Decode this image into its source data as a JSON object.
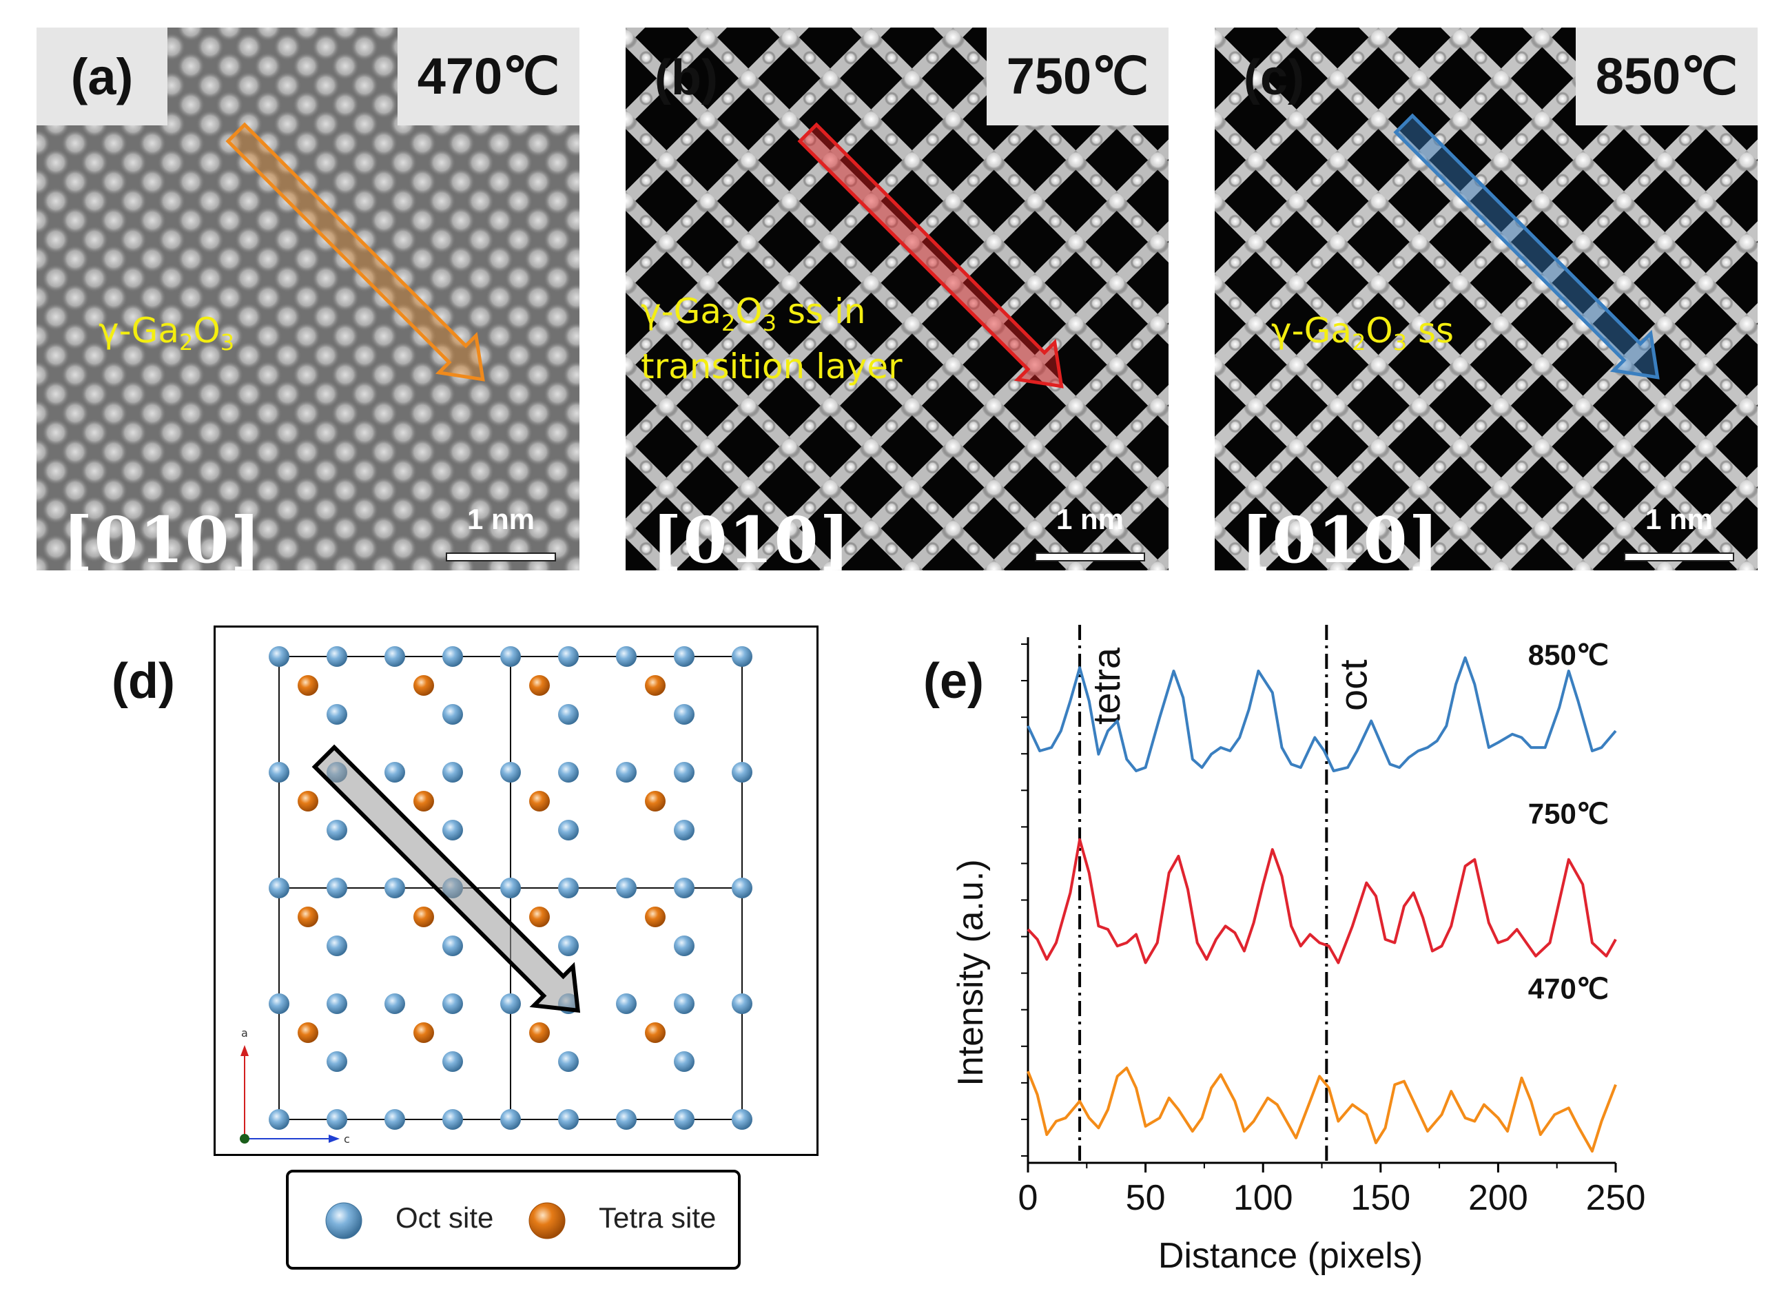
{
  "panels": [
    {
      "label": "(a)",
      "temperature": "470℃",
      "phase": [
        "γ-Ga",
        "2",
        "O",
        "3"
      ],
      "phase_line2": "",
      "zone_axis": "[010]",
      "scale": "1 nm",
      "arrow_color": "#f08a1c",
      "theme": "gray"
    },
    {
      "label": "(b)",
      "temperature": "750℃",
      "phase": [
        "γ-Ga",
        "2",
        "O",
        "3",
        " ss in"
      ],
      "phase_line2": "transition layer",
      "zone_axis": "[010]",
      "scale": "1 nm",
      "arrow_color": "#e02020",
      "theme": "dark"
    },
    {
      "label": "(c)",
      "temperature": "850℃",
      "phase": [
        "γ-Ga",
        "2",
        "O",
        "3",
        " ss"
      ],
      "phase_line2": "",
      "zone_axis": "[010]",
      "scale": "1 nm",
      "arrow_color": "#3a7fc0",
      "theme": "dark"
    }
  ],
  "structure": {
    "label": "(d)",
    "axis_a": "a",
    "axis_c": "c",
    "legend": {
      "oct": "Oct site",
      "tetra": "Tetra site"
    },
    "colors": {
      "oct": "#6fa8d6",
      "tetra": "#e07814"
    }
  },
  "chart_data": {
    "label": "(e)",
    "type": "line",
    "xlabel": "Distance (pixels)",
    "ylabel": "Intensity (a.u.)",
    "xlim": [
      0,
      250
    ],
    "xticks": [
      0,
      50,
      100,
      150,
      200,
      250
    ],
    "y_tick_labels_shown": false,
    "grid": false,
    "annotations": [
      {
        "text": "tetra",
        "x": 22
      },
      {
        "text": "oct",
        "x": 127
      }
    ],
    "series": [
      {
        "name": "850℃",
        "color": "#3a7fc0",
        "x": [
          0,
          5,
          10,
          14,
          18,
          22,
          26,
          30,
          34,
          38,
          42,
          46,
          50,
          56,
          62,
          66,
          70,
          74,
          78,
          82,
          86,
          90,
          94,
          98,
          104,
          108,
          112,
          116,
          122,
          126,
          130,
          136,
          140,
          146,
          150,
          154,
          158,
          162,
          166,
          170,
          174,
          178,
          182,
          186,
          190,
          196,
          200,
          206,
          210,
          214,
          220,
          226,
          230,
          234,
          240,
          244,
          250
        ],
        "y": [
          0.55,
          0.4,
          0.42,
          0.52,
          0.7,
          0.9,
          0.7,
          0.38,
          0.52,
          0.58,
          0.35,
          0.28,
          0.3,
          0.6,
          0.88,
          0.72,
          0.35,
          0.3,
          0.38,
          0.42,
          0.4,
          0.48,
          0.65,
          0.88,
          0.75,
          0.42,
          0.32,
          0.3,
          0.48,
          0.4,
          0.28,
          0.3,
          0.4,
          0.58,
          0.45,
          0.32,
          0.3,
          0.36,
          0.4,
          0.42,
          0.46,
          0.55,
          0.8,
          0.96,
          0.8,
          0.42,
          0.45,
          0.5,
          0.48,
          0.42,
          0.42,
          0.66,
          0.88,
          0.7,
          0.4,
          0.42,
          0.52
        ]
      },
      {
        "name": "750℃",
        "color": "#e0242f",
        "x": [
          0,
          4,
          8,
          12,
          18,
          22,
          26,
          30,
          34,
          38,
          42,
          46,
          50,
          55,
          60,
          64,
          68,
          72,
          76,
          80,
          84,
          88,
          92,
          96,
          100,
          104,
          108,
          112,
          116,
          120,
          124,
          128,
          132,
          138,
          144,
          148,
          152,
          156,
          160,
          164,
          168,
          172,
          176,
          180,
          186,
          190,
          196,
          200,
          204,
          208,
          212,
          216,
          222,
          230,
          236,
          240,
          246,
          250
        ],
        "y": [
          0.38,
          0.32,
          0.2,
          0.3,
          0.6,
          0.92,
          0.72,
          0.4,
          0.38,
          0.28,
          0.3,
          0.35,
          0.18,
          0.3,
          0.72,
          0.82,
          0.62,
          0.3,
          0.2,
          0.32,
          0.4,
          0.36,
          0.25,
          0.42,
          0.65,
          0.86,
          0.7,
          0.4,
          0.28,
          0.35,
          0.3,
          0.28,
          0.18,
          0.4,
          0.66,
          0.58,
          0.32,
          0.3,
          0.52,
          0.6,
          0.45,
          0.25,
          0.28,
          0.4,
          0.76,
          0.8,
          0.42,
          0.3,
          0.32,
          0.38,
          0.3,
          0.22,
          0.3,
          0.8,
          0.65,
          0.3,
          0.22,
          0.32
        ]
      },
      {
        "name": "470℃",
        "color": "#f48c18",
        "x": [
          0,
          4,
          8,
          12,
          16,
          22,
          26,
          30,
          34,
          38,
          42,
          46,
          50,
          56,
          60,
          64,
          70,
          74,
          78,
          82,
          88,
          92,
          96,
          102,
          106,
          110,
          114,
          120,
          124,
          128,
          132,
          138,
          144,
          148,
          152,
          156,
          160,
          164,
          170,
          176,
          180,
          186,
          190,
          194,
          200,
          204,
          210,
          214,
          218,
          224,
          230,
          234,
          240,
          244,
          250
        ],
        "y": [
          0.58,
          0.44,
          0.2,
          0.28,
          0.3,
          0.4,
          0.3,
          0.24,
          0.35,
          0.55,
          0.6,
          0.48,
          0.25,
          0.3,
          0.42,
          0.35,
          0.22,
          0.3,
          0.48,
          0.56,
          0.4,
          0.22,
          0.28,
          0.42,
          0.38,
          0.28,
          0.18,
          0.4,
          0.55,
          0.48,
          0.28,
          0.38,
          0.32,
          0.15,
          0.24,
          0.5,
          0.52,
          0.4,
          0.22,
          0.32,
          0.46,
          0.3,
          0.28,
          0.38,
          0.3,
          0.22,
          0.54,
          0.4,
          0.2,
          0.32,
          0.36,
          0.25,
          0.1,
          0.28,
          0.5
        ]
      }
    ]
  }
}
